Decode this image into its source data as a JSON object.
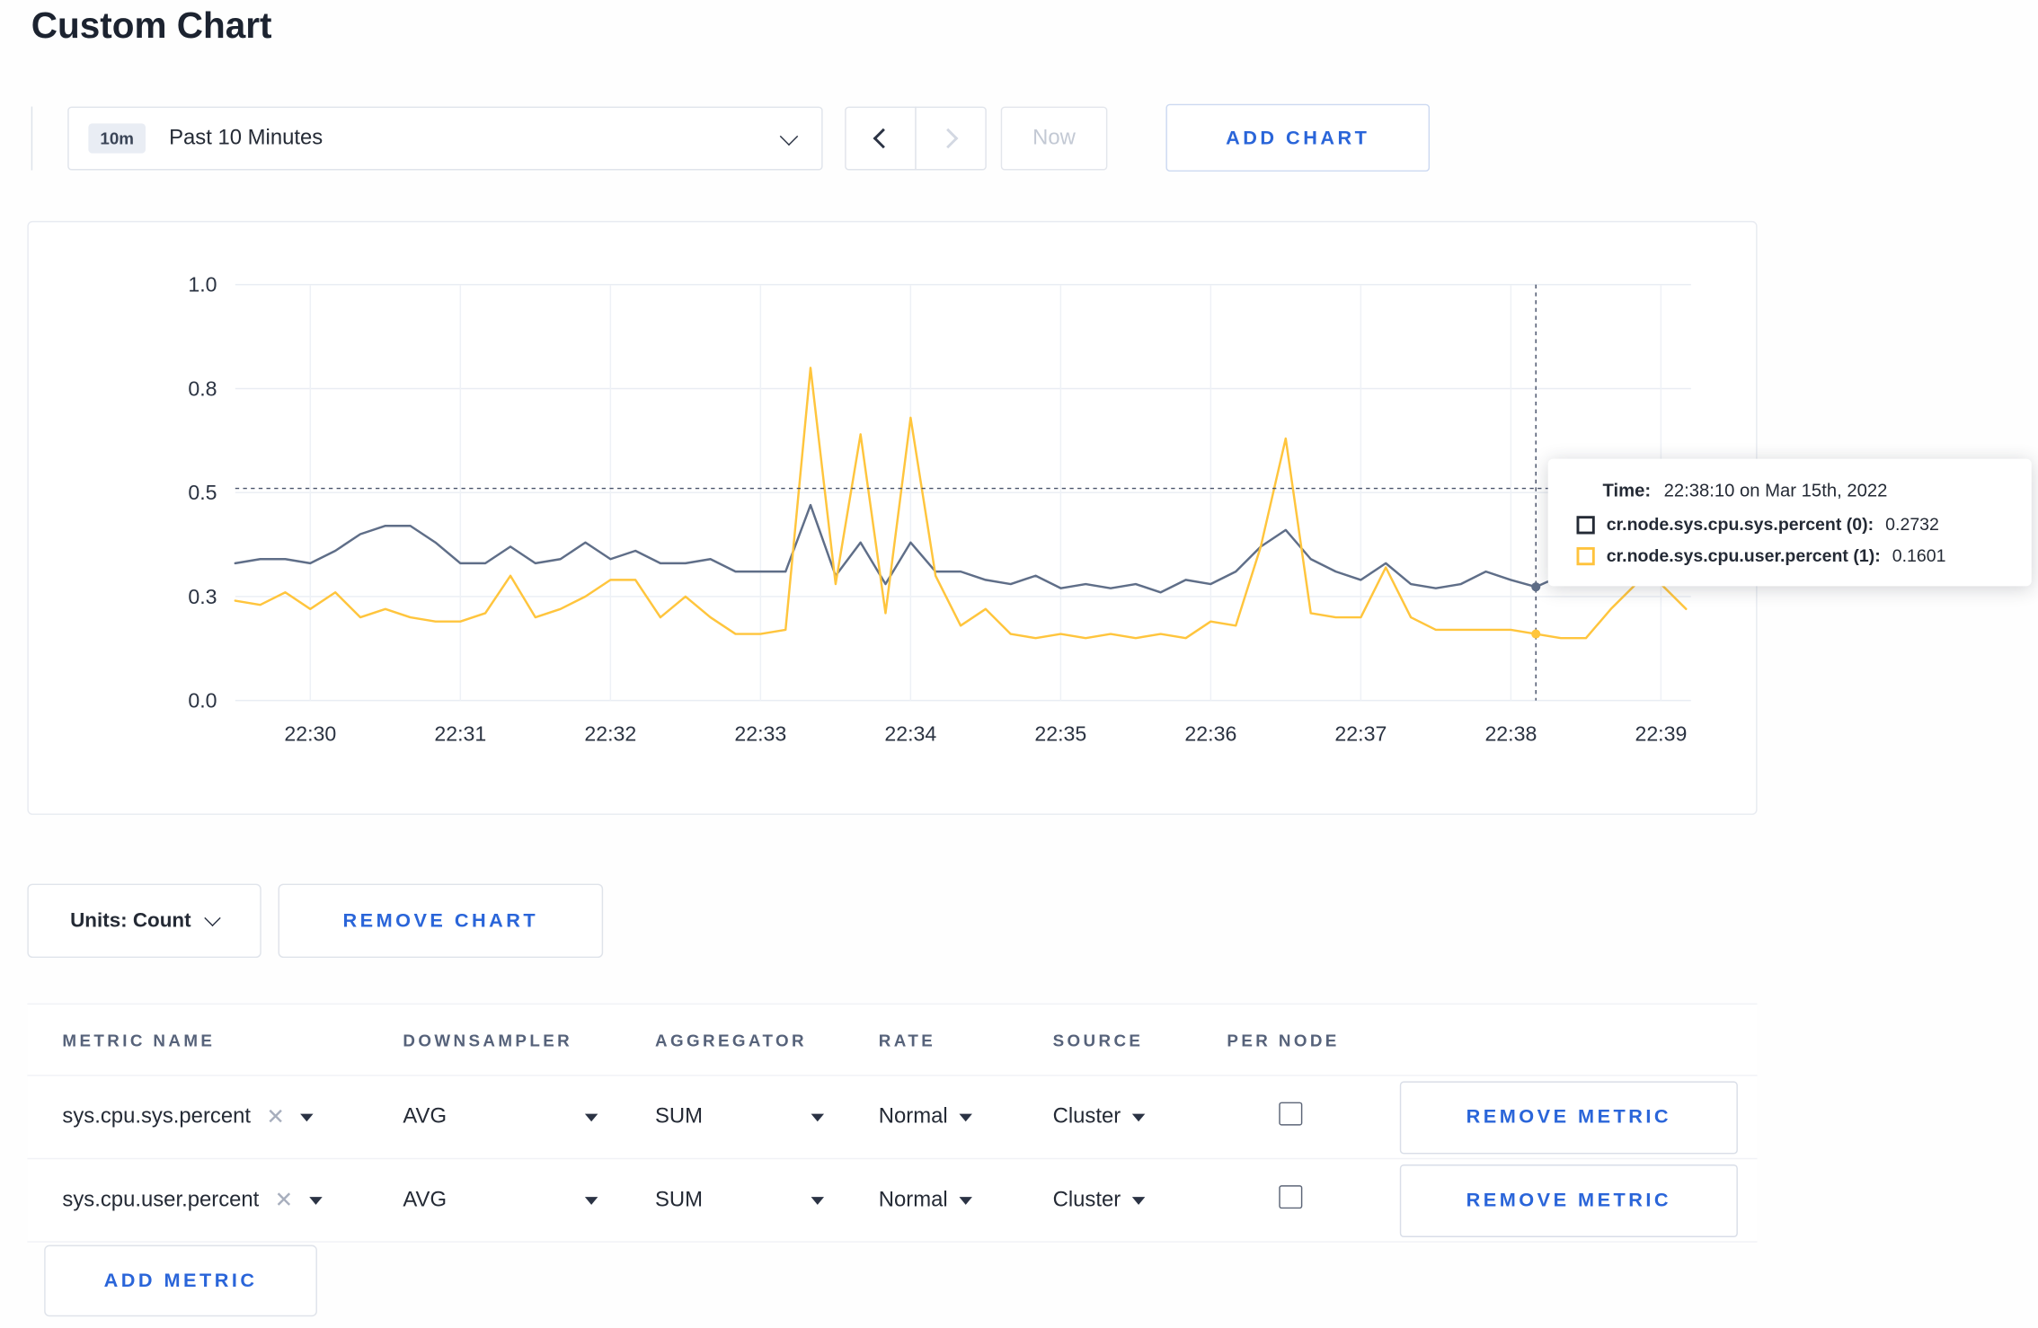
{
  "page": {
    "title": "Custom Chart"
  },
  "toolbar": {
    "range_badge": "10m",
    "range_label": "Past 10 Minutes",
    "now_label": "Now",
    "add_chart_label": "ADD CHART"
  },
  "tooltip": {
    "time_label": "Time:",
    "time_value": "22:38:10 on Mar 15th, 2022",
    "series": [
      {
        "name": "cr.node.sys.cpu.sys.percent (0):",
        "value": "0.2732",
        "color": "#242a35"
      },
      {
        "name": "cr.node.sys.cpu.user.percent (1):",
        "value": "0.1601",
        "color": "#ffc33d"
      }
    ]
  },
  "chart_controls": {
    "units_label": "Units: Count",
    "remove_chart_label": "REMOVE CHART",
    "add_metric_label": "ADD METRIC"
  },
  "metrics_table": {
    "headers": [
      "METRIC NAME",
      "DOWNSAMPLER",
      "AGGREGATOR",
      "RATE",
      "SOURCE",
      "PER NODE"
    ],
    "remove_label": "REMOVE METRIC",
    "rows": [
      {
        "metric": "sys.cpu.sys.percent",
        "downsampler": "AVG",
        "aggregator": "SUM",
        "rate": "Normal",
        "source": "Cluster",
        "per_node": false
      },
      {
        "metric": "sys.cpu.user.percent",
        "downsampler": "AVG",
        "aggregator": "SUM",
        "rate": "Normal",
        "source": "Cluster",
        "per_node": false
      }
    ]
  },
  "colors": {
    "accent": "#2a65d9"
  },
  "chart_data": {
    "type": "line",
    "title": "",
    "xlabel": "",
    "ylabel": "",
    "ylim": [
      0,
      1
    ],
    "grid": true,
    "legend_position": "tooltip",
    "x_domain_seconds": [
      0,
      582
    ],
    "x_ticks": [
      {
        "t": 30,
        "label": "22:30"
      },
      {
        "t": 90,
        "label": "22:31"
      },
      {
        "t": 150,
        "label": "22:32"
      },
      {
        "t": 210,
        "label": "22:33"
      },
      {
        "t": 270,
        "label": "22:34"
      },
      {
        "t": 330,
        "label": "22:35"
      },
      {
        "t": 390,
        "label": "22:36"
      },
      {
        "t": 450,
        "label": "22:37"
      },
      {
        "t": 510,
        "label": "22:38"
      },
      {
        "t": 570,
        "label": "22:39"
      }
    ],
    "y_ticks": [
      {
        "v": 0,
        "label": "0.0"
      },
      {
        "v": 0.25,
        "label": "0.3"
      },
      {
        "v": 0.5,
        "label": "0.5"
      },
      {
        "v": 0.75,
        "label": "0.8"
      },
      {
        "v": 1,
        "label": "1.0"
      }
    ],
    "crosshair": {
      "t": 520,
      "v": 0.51
    },
    "hover_points": [
      {
        "series": 0,
        "t": 520,
        "v": 0.2732
      },
      {
        "series": 1,
        "t": 520,
        "v": 0.1601
      }
    ],
    "series": [
      {
        "name": "cr.node.sys.cpu.sys.percent",
        "color": "#5f6e88",
        "points": [
          [
            0,
            0.33
          ],
          [
            10,
            0.34
          ],
          [
            20,
            0.34
          ],
          [
            30,
            0.33
          ],
          [
            40,
            0.36
          ],
          [
            50,
            0.4
          ],
          [
            60,
            0.42
          ],
          [
            70,
            0.42
          ],
          [
            80,
            0.38
          ],
          [
            90,
            0.33
          ],
          [
            100,
            0.33
          ],
          [
            110,
            0.37
          ],
          [
            120,
            0.33
          ],
          [
            130,
            0.34
          ],
          [
            140,
            0.38
          ],
          [
            150,
            0.34
          ],
          [
            160,
            0.36
          ],
          [
            170,
            0.33
          ],
          [
            180,
            0.33
          ],
          [
            190,
            0.34
          ],
          [
            200,
            0.31
          ],
          [
            210,
            0.31
          ],
          [
            220,
            0.31
          ],
          [
            230,
            0.47
          ],
          [
            240,
            0.3
          ],
          [
            250,
            0.38
          ],
          [
            260,
            0.28
          ],
          [
            270,
            0.38
          ],
          [
            280,
            0.31
          ],
          [
            290,
            0.31
          ],
          [
            300,
            0.29
          ],
          [
            310,
            0.28
          ],
          [
            320,
            0.3
          ],
          [
            330,
            0.27
          ],
          [
            340,
            0.28
          ],
          [
            350,
            0.27
          ],
          [
            360,
            0.28
          ],
          [
            370,
            0.26
          ],
          [
            380,
            0.29
          ],
          [
            390,
            0.28
          ],
          [
            400,
            0.31
          ],
          [
            410,
            0.37
          ],
          [
            420,
            0.41
          ],
          [
            430,
            0.34
          ],
          [
            440,
            0.31
          ],
          [
            450,
            0.29
          ],
          [
            460,
            0.33
          ],
          [
            470,
            0.28
          ],
          [
            480,
            0.27
          ],
          [
            490,
            0.28
          ],
          [
            500,
            0.31
          ],
          [
            510,
            0.29
          ],
          [
            520,
            0.2732
          ],
          [
            530,
            0.3
          ],
          [
            540,
            0.3
          ],
          [
            550,
            0.31
          ],
          [
            560,
            0.3
          ],
          [
            570,
            0.3
          ]
        ]
      },
      {
        "name": "cr.node.sys.cpu.user.percent",
        "color": "#ffc53d",
        "points": [
          [
            0,
            0.24
          ],
          [
            10,
            0.23
          ],
          [
            20,
            0.26
          ],
          [
            30,
            0.22
          ],
          [
            40,
            0.26
          ],
          [
            50,
            0.2
          ],
          [
            60,
            0.22
          ],
          [
            70,
            0.2
          ],
          [
            80,
            0.19
          ],
          [
            90,
            0.19
          ],
          [
            100,
            0.21
          ],
          [
            110,
            0.3
          ],
          [
            120,
            0.2
          ],
          [
            130,
            0.22
          ],
          [
            140,
            0.25
          ],
          [
            150,
            0.29
          ],
          [
            160,
            0.29
          ],
          [
            170,
            0.2
          ],
          [
            180,
            0.25
          ],
          [
            190,
            0.2
          ],
          [
            200,
            0.16
          ],
          [
            210,
            0.16
          ],
          [
            220,
            0.17
          ],
          [
            230,
            0.8
          ],
          [
            240,
            0.28
          ],
          [
            250,
            0.64
          ],
          [
            260,
            0.21
          ],
          [
            270,
            0.68
          ],
          [
            280,
            0.3
          ],
          [
            290,
            0.18
          ],
          [
            300,
            0.22
          ],
          [
            310,
            0.16
          ],
          [
            320,
            0.15
          ],
          [
            330,
            0.16
          ],
          [
            340,
            0.15
          ],
          [
            350,
            0.16
          ],
          [
            360,
            0.15
          ],
          [
            370,
            0.16
          ],
          [
            380,
            0.15
          ],
          [
            390,
            0.19
          ],
          [
            400,
            0.18
          ],
          [
            410,
            0.37
          ],
          [
            420,
            0.63
          ],
          [
            430,
            0.21
          ],
          [
            440,
            0.2
          ],
          [
            450,
            0.2
          ],
          [
            460,
            0.32
          ],
          [
            470,
            0.2
          ],
          [
            480,
            0.17
          ],
          [
            490,
            0.17
          ],
          [
            500,
            0.17
          ],
          [
            510,
            0.17
          ],
          [
            520,
            0.1601
          ],
          [
            530,
            0.15
          ],
          [
            540,
            0.15
          ],
          [
            550,
            0.22
          ],
          [
            560,
            0.28
          ],
          [
            570,
            0.28
          ],
          [
            580,
            0.22
          ]
        ]
      }
    ]
  }
}
